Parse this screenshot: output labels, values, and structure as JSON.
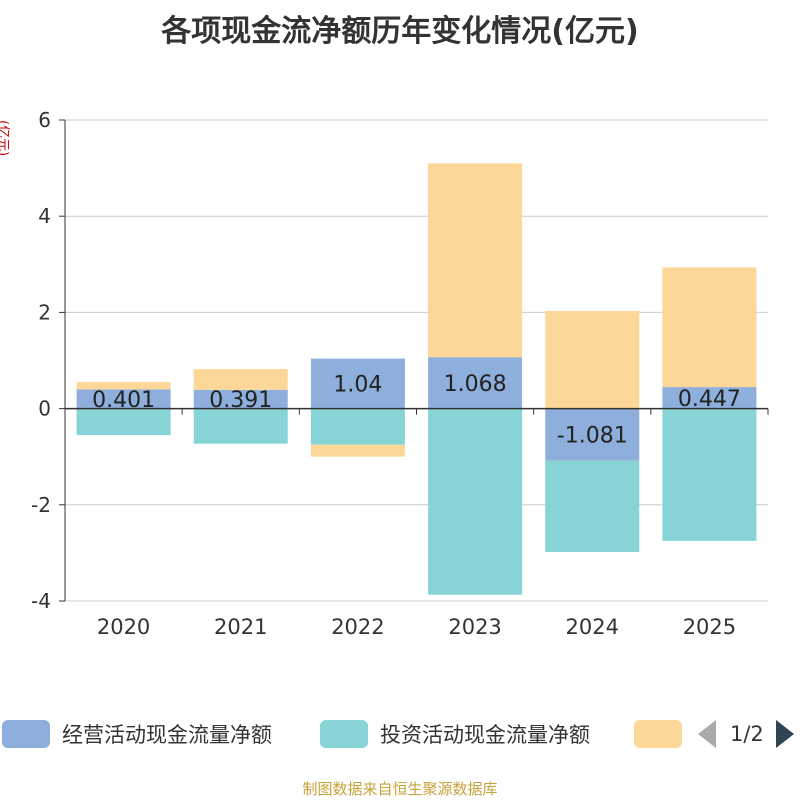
{
  "title": "各项现金流净额历年变化情况(亿元)",
  "unit_label": "(亿元)",
  "source": "制图数据来自恒生聚源数据库",
  "legend": {
    "items": [
      {
        "label": "经营活动现金流量净额",
        "color": "#8eaedb"
      },
      {
        "label": "投资活动现金流量净额",
        "color": "#86d4d6"
      },
      {
        "label": "",
        "color": "#fdd798"
      }
    ],
    "page": "1/2"
  },
  "chart_data": {
    "type": "bar",
    "stacked": true,
    "categories": [
      "2020",
      "2021",
      "2022",
      "2023",
      "2024",
      "2025"
    ],
    "ylim": [
      -4,
      6
    ],
    "yticks": [
      -4,
      -2,
      0,
      2,
      4,
      6
    ],
    "series": [
      {
        "name": "经营活动现金流量净额",
        "color": "#8eaedb",
        "values": [
          0.401,
          0.391,
          1.04,
          1.068,
          -1.081,
          0.447
        ],
        "labels": [
          "0.401",
          "0.391",
          "1.04",
          "1.068",
          "-1.081",
          "0.447"
        ]
      },
      {
        "name": "投资活动现金流量净额",
        "color": "#86d4d6",
        "values": [
          -0.55,
          -0.73,
          -0.75,
          -3.87,
          -1.9,
          -2.75
        ]
      },
      {
        "name": "",
        "color": "#fdd798",
        "values": [
          0.15,
          0.43,
          -0.25,
          4.03,
          2.03,
          2.49
        ]
      }
    ]
  }
}
